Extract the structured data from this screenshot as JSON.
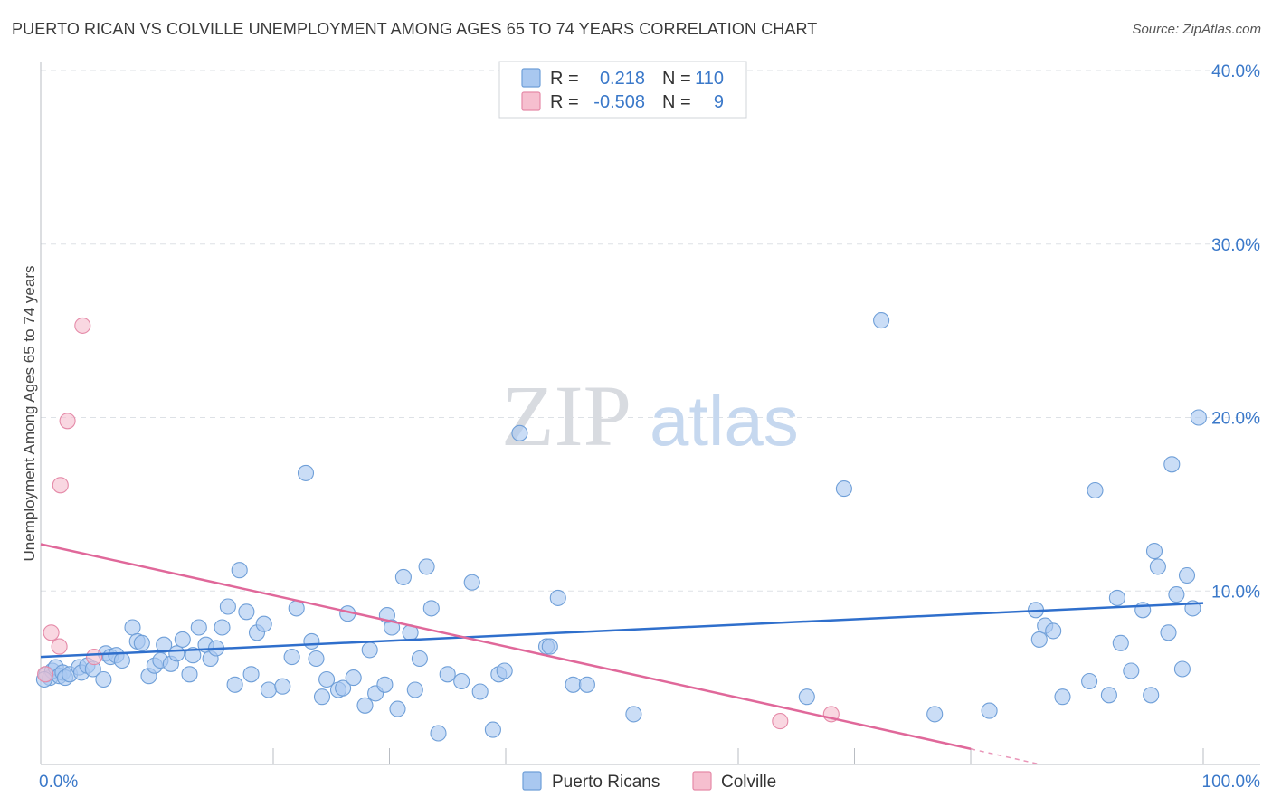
{
  "header": {
    "title": "PUERTO RICAN VS COLVILLE UNEMPLOYMENT AMONG AGES 65 TO 74 YEARS CORRELATION CHART",
    "source": "Source: ZipAtlas.com"
  },
  "watermark": {
    "zip": "ZIP",
    "atlas": "atlas"
  },
  "colors": {
    "blue_fill": "#a9c8f0",
    "blue_stroke": "#6f9fd8",
    "blue_line": "#2f6fcc",
    "pink_fill": "#f6bfcf",
    "pink_stroke": "#e58aa8",
    "pink_line": "#e0689a",
    "tick_text": "#3a78c9",
    "grid": "#dde1e6"
  },
  "legend": {
    "rows": [
      {
        "r_label": "R =",
        "r_value": "0.218",
        "n_label": "N =",
        "n_value": "110"
      },
      {
        "r_label": "R =",
        "r_value": "-0.508",
        "n_label": "N =",
        "n_value": "9"
      }
    ]
  },
  "bottom_legend": {
    "series1": "Puerto Ricans",
    "series2": "Colville"
  },
  "chart_data": {
    "type": "scatter",
    "title": "PUERTO RICAN VS COLVILLE UNEMPLOYMENT AMONG AGES 65 TO 74 YEARS CORRELATION CHART",
    "xlabel": "",
    "ylabel": "Unemployment Among Ages 65 to 74 years",
    "xlim": [
      0,
      100
    ],
    "ylim": [
      0,
      40
    ],
    "x_tick_labels": [
      "0.0%",
      "100.0%"
    ],
    "y_ticks": [
      10,
      20,
      30,
      40
    ],
    "y_tick_labels": [
      "10.0%",
      "20.0%",
      "30.0%",
      "40.0%"
    ],
    "grid": true,
    "legend_placement": "top-center",
    "series": [
      {
        "name": "Puerto Ricans",
        "r": 0.218,
        "n": 110,
        "trend": {
          "x": [
            0,
            100
          ],
          "y": [
            6.2,
            9.3
          ]
        },
        "points": [
          [
            0.5,
            5.2
          ],
          [
            0.8,
            5.0
          ],
          [
            1.0,
            5.4
          ],
          [
            1.3,
            5.6
          ],
          [
            1.6,
            5.1
          ],
          [
            1.9,
            5.3
          ],
          [
            2.1,
            5.0
          ],
          [
            2.5,
            5.2
          ],
          [
            3.3,
            5.6
          ],
          [
            3.5,
            5.3
          ],
          [
            4.0,
            5.7
          ],
          [
            4.5,
            5.5
          ],
          [
            5.4,
            4.9
          ],
          [
            5.6,
            6.4
          ],
          [
            6.0,
            6.2
          ],
          [
            6.5,
            6.3
          ],
          [
            7.0,
            6.0
          ],
          [
            7.9,
            7.9
          ],
          [
            8.3,
            7.1
          ],
          [
            8.7,
            7.0
          ],
          [
            9.3,
            5.1
          ],
          [
            9.8,
            5.7
          ],
          [
            10.3,
            6.0
          ],
          [
            10.6,
            6.9
          ],
          [
            11.2,
            5.8
          ],
          [
            11.7,
            6.4
          ],
          [
            12.2,
            7.2
          ],
          [
            12.8,
            5.2
          ],
          [
            13.1,
            6.3
          ],
          [
            13.6,
            7.9
          ],
          [
            14.2,
            6.9
          ],
          [
            14.6,
            6.1
          ],
          [
            15.1,
            6.7
          ],
          [
            15.6,
            7.9
          ],
          [
            16.1,
            9.1
          ],
          [
            16.7,
            4.6
          ],
          [
            17.1,
            11.2
          ],
          [
            17.7,
            8.8
          ],
          [
            18.1,
            5.2
          ],
          [
            18.6,
            7.6
          ],
          [
            19.2,
            8.1
          ],
          [
            19.6,
            4.3
          ],
          [
            20.8,
            4.5
          ],
          [
            21.6,
            6.2
          ],
          [
            22.0,
            9.0
          ],
          [
            22.8,
            16.8
          ],
          [
            23.3,
            7.1
          ],
          [
            23.7,
            6.1
          ],
          [
            24.2,
            3.9
          ],
          [
            24.6,
            4.9
          ],
          [
            25.6,
            4.3
          ],
          [
            26.0,
            4.4
          ],
          [
            26.4,
            8.7
          ],
          [
            26.9,
            5.0
          ],
          [
            27.9,
            3.4
          ],
          [
            28.3,
            6.6
          ],
          [
            28.8,
            4.1
          ],
          [
            29.6,
            4.6
          ],
          [
            29.8,
            8.6
          ],
          [
            30.2,
            7.9
          ],
          [
            30.7,
            3.2
          ],
          [
            31.2,
            10.8
          ],
          [
            31.8,
            7.6
          ],
          [
            32.2,
            4.3
          ],
          [
            32.6,
            6.1
          ],
          [
            33.2,
            11.4
          ],
          [
            33.6,
            9.0
          ],
          [
            34.2,
            1.8
          ],
          [
            35.0,
            5.2
          ],
          [
            36.2,
            4.8
          ],
          [
            37.1,
            10.5
          ],
          [
            37.8,
            4.2
          ],
          [
            38.9,
            2.0
          ],
          [
            39.4,
            5.2
          ],
          [
            39.9,
            5.4
          ],
          [
            41.2,
            19.1
          ],
          [
            43.5,
            6.8
          ],
          [
            43.8,
            6.8
          ],
          [
            44.5,
            9.6
          ],
          [
            45.8,
            4.6
          ],
          [
            47.0,
            4.6
          ],
          [
            51.0,
            2.9
          ],
          [
            65.9,
            3.9
          ],
          [
            69.1,
            15.9
          ],
          [
            72.3,
            25.6
          ],
          [
            76.9,
            2.9
          ],
          [
            81.6,
            3.1
          ],
          [
            85.6,
            8.9
          ],
          [
            85.9,
            7.2
          ],
          [
            86.4,
            8.0
          ],
          [
            87.1,
            7.7
          ],
          [
            87.9,
            3.9
          ],
          [
            90.2,
            4.8
          ],
          [
            90.7,
            15.8
          ],
          [
            91.9,
            4.0
          ],
          [
            92.6,
            9.6
          ],
          [
            92.9,
            7.0
          ],
          [
            93.8,
            5.4
          ],
          [
            94.8,
            8.9
          ],
          [
            95.5,
            4.0
          ],
          [
            95.8,
            12.3
          ],
          [
            96.1,
            11.4
          ],
          [
            97.0,
            7.6
          ],
          [
            97.3,
            17.3
          ],
          [
            97.7,
            9.8
          ],
          [
            98.2,
            5.5
          ],
          [
            98.6,
            10.9
          ],
          [
            99.1,
            9.0
          ],
          [
            99.6,
            20.0
          ],
          [
            0.3,
            4.9
          ]
        ]
      },
      {
        "name": "Colville",
        "r": -0.508,
        "n": 9,
        "trend": {
          "x": [
            0,
            80
          ],
          "y": [
            12.7,
            0.9
          ],
          "dashed_extension_to": [
            86,
            0.0
          ]
        },
        "points": [
          [
            0.4,
            5.2
          ],
          [
            0.9,
            7.6
          ],
          [
            1.6,
            6.8
          ],
          [
            1.7,
            16.1
          ],
          [
            2.3,
            19.8
          ],
          [
            3.6,
            25.3
          ],
          [
            4.6,
            6.2
          ],
          [
            63.6,
            2.5
          ],
          [
            68.0,
            2.9
          ]
        ]
      }
    ]
  }
}
